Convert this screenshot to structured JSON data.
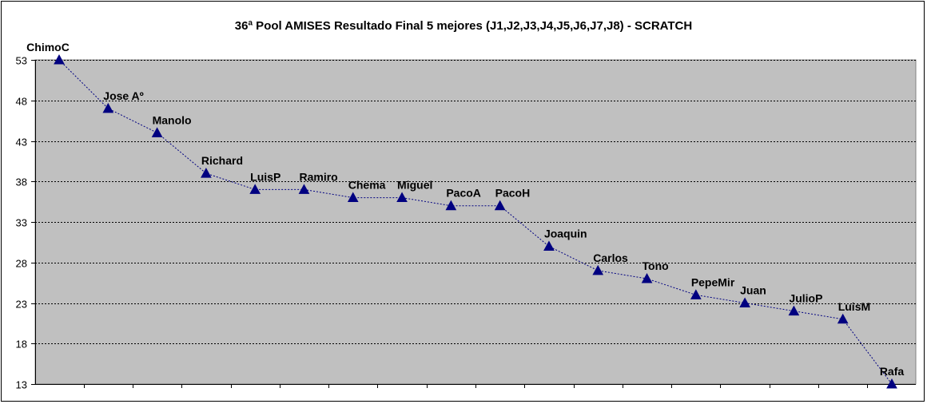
{
  "chart_data": {
    "type": "line",
    "title": "36ª Pool AMISES Resultado Final 5 mejores (J1,J2,J3,J4,J5,J6,J7,J8)  - SCRATCH",
    "xlabel": "",
    "ylabel": "",
    "ylim": [
      13,
      53
    ],
    "yticks": [
      13,
      18,
      23,
      28,
      33,
      38,
      43,
      48,
      53
    ],
    "grid": true,
    "legend": "none",
    "colors": {
      "plot_background": "#c0c0c0",
      "line": "#000080",
      "marker": "#000080",
      "gridline": "#000000"
    },
    "categories": [
      "ChimoC",
      "Jose Aº",
      "Manolo",
      "Richard",
      "LuisP",
      "Ramiro",
      "Chema",
      "Miguel",
      "PacoA",
      "PacoH",
      "Joaquin",
      "Carlos",
      "Tono",
      "PepeMir",
      "Juan",
      "JulioP",
      "LuisM",
      "Rafa"
    ],
    "values": [
      53,
      47,
      44,
      39,
      37,
      37,
      36,
      36,
      35,
      35,
      30,
      27,
      26,
      24,
      23,
      22,
      21,
      13
    ]
  }
}
